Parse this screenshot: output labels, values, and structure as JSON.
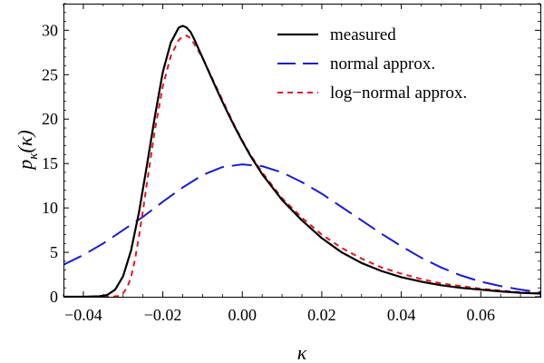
{
  "chart_data": {
    "type": "line",
    "title": "",
    "xlabel": "κ",
    "ylabel_main": "p",
    "ylabel_sub": "κ",
    "ylabel_arg": "(κ)",
    "xlim": [
      -0.045,
      0.075
    ],
    "ylim": [
      0,
      33
    ],
    "grid": false,
    "legend_position": "top-right",
    "x_ticks": [
      {
        "value": -0.04,
        "label": "−0.04"
      },
      {
        "value": -0.02,
        "label": "−0.02"
      },
      {
        "value": 0.0,
        "label": "0.00"
      },
      {
        "value": 0.02,
        "label": "0.02"
      },
      {
        "value": 0.04,
        "label": "0.04"
      },
      {
        "value": 0.06,
        "label": "0.06"
      }
    ],
    "y_ticks": [
      {
        "value": 0,
        "label": "0"
      },
      {
        "value": 5,
        "label": "5"
      },
      {
        "value": 10,
        "label": "10"
      },
      {
        "value": 15,
        "label": "15"
      },
      {
        "value": 20,
        "label": "20"
      },
      {
        "value": 25,
        "label": "25"
      },
      {
        "value": 30,
        "label": "30"
      }
    ],
    "series": [
      {
        "name": "measured",
        "color": "#000000",
        "dash": "solid",
        "x": [
          -0.045,
          -0.04,
          -0.036,
          -0.034,
          -0.032,
          -0.03,
          -0.028,
          -0.026,
          -0.024,
          -0.022,
          -0.02,
          -0.018,
          -0.016,
          -0.015,
          -0.014,
          -0.013,
          -0.012,
          -0.011,
          -0.01,
          -0.008,
          -0.006,
          -0.004,
          -0.002,
          0.0,
          0.002,
          0.005,
          0.01,
          0.015,
          0.02,
          0.025,
          0.03,
          0.035,
          0.04,
          0.045,
          0.05,
          0.055,
          0.06,
          0.065,
          0.07,
          0.075
        ],
        "y": [
          0,
          0,
          0.05,
          0.2,
          0.8,
          2.3,
          5.2,
          9.5,
          14.8,
          20.3,
          25.3,
          28.6,
          30.3,
          30.5,
          30.3,
          29.8,
          28.9,
          27.9,
          26.9,
          24.9,
          22.9,
          21.0,
          19.2,
          17.5,
          15.9,
          13.8,
          10.9,
          8.6,
          6.6,
          5.0,
          3.8,
          2.9,
          2.2,
          1.7,
          1.3,
          1.0,
          0.8,
          0.6,
          0.45,
          0.35
        ]
      },
      {
        "name": "normal approx.",
        "color": "#1a1adb",
        "dash": "long-dash",
        "x": [
          -0.045,
          -0.04,
          -0.035,
          -0.03,
          -0.025,
          -0.02,
          -0.015,
          -0.01,
          -0.005,
          0.0,
          0.005,
          0.01,
          0.015,
          0.02,
          0.025,
          0.03,
          0.035,
          0.04,
          0.045,
          0.05,
          0.055,
          0.06,
          0.065,
          0.07,
          0.075
        ],
        "y": [
          3.6,
          4.7,
          6.0,
          7.5,
          9.0,
          10.7,
          12.3,
          13.7,
          14.6,
          14.9,
          14.7,
          14.0,
          12.9,
          11.6,
          10.1,
          8.6,
          7.1,
          5.7,
          4.4,
          3.3,
          2.4,
          1.7,
          1.2,
          0.8,
          0.5
        ]
      },
      {
        "name": "log−normal approx.",
        "color": "#e8141e",
        "dash": "short-dash",
        "x": [
          -0.045,
          -0.036,
          -0.033,
          -0.031,
          -0.03,
          -0.029,
          -0.028,
          -0.027,
          -0.026,
          -0.025,
          -0.024,
          -0.022,
          -0.02,
          -0.018,
          -0.016,
          -0.015,
          -0.014,
          -0.013,
          -0.012,
          -0.01,
          -0.008,
          -0.006,
          -0.004,
          -0.002,
          0.0,
          0.002,
          0.005,
          0.01,
          0.015,
          0.02,
          0.025,
          0.03,
          0.035,
          0.04,
          0.045,
          0.05,
          0.055,
          0.06,
          0.065,
          0.07,
          0.075
        ],
        "y": [
          0,
          0,
          0,
          0.1,
          0.4,
          1.0,
          2.2,
          4.2,
          6.8,
          9.7,
          12.8,
          18.8,
          23.7,
          27.1,
          28.9,
          29.3,
          29.4,
          29.1,
          28.4,
          26.9,
          25.0,
          23.1,
          21.2,
          19.3,
          17.6,
          16.0,
          14.0,
          11.1,
          8.9,
          7.0,
          5.5,
          4.3,
          3.3,
          2.6,
          2.0,
          1.5,
          1.2,
          0.9,
          0.7,
          0.5,
          0.4
        ]
      }
    ]
  }
}
